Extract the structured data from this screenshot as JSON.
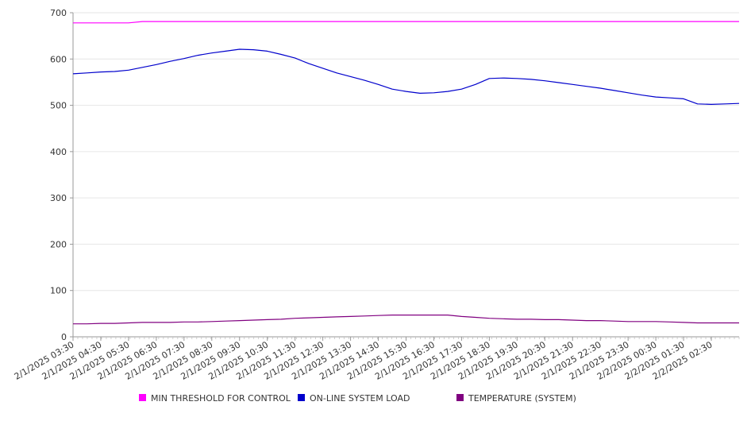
{
  "chart_data": {
    "type": "line",
    "title": "",
    "xlabel": "",
    "ylabel": "",
    "ylim": [
      0,
      700
    ],
    "y_ticks": [
      0,
      100,
      200,
      300,
      400,
      500,
      600,
      700
    ],
    "grid": "horizontal",
    "legend_position": "bottom",
    "x_tick_labels": [
      "2/1/2025 03:30",
      "2/1/2025 04:30",
      "2/1/2025 05:30",
      "2/1/2025 06:30",
      "2/1/2025 07:30",
      "2/1/2025 08:30",
      "2/1/2025 09:30",
      "2/1/2025 10:30",
      "2/1/2025 11:30",
      "2/1/2025 12:30",
      "2/1/2025 13:30",
      "2/1/2025 14:30",
      "2/1/2025 15:30",
      "2/1/2025 16:30",
      "2/1/2025 17:30",
      "2/1/2025 18:30",
      "2/1/2025 19:30",
      "2/1/2025 20:30",
      "2/1/2025 21:30",
      "2/1/2025 22:30",
      "2/1/2025 23:30",
      "2/2/2025 00:30",
      "2/2/2025 01:30",
      "2/2/2025 02:30"
    ],
    "x": [
      "03:30",
      "04:00",
      "04:30",
      "05:00",
      "05:30",
      "06:00",
      "06:30",
      "07:00",
      "07:30",
      "08:00",
      "08:30",
      "09:00",
      "09:30",
      "10:00",
      "10:30",
      "11:00",
      "11:30",
      "12:00",
      "12:30",
      "13:00",
      "13:30",
      "14:00",
      "14:30",
      "15:00",
      "15:30",
      "16:00",
      "16:30",
      "17:00",
      "17:30",
      "18:00",
      "18:30",
      "19:00",
      "19:30",
      "20:00",
      "20:30",
      "21:00",
      "21:30",
      "22:00",
      "22:30",
      "23:00",
      "23:30",
      "00:00",
      "00:30",
      "01:00",
      "01:30",
      "02:00",
      "02:30",
      "03:00",
      "03:30"
    ],
    "series": [
      {
        "name": "MIN THRESHOLD FOR CONTROL",
        "color": "#ff00ff",
        "values": [
          678,
          678,
          678,
          678,
          678,
          681,
          681,
          681,
          681,
          681,
          681,
          681,
          681,
          681,
          681,
          681,
          681,
          681,
          681,
          681,
          681,
          681,
          681,
          681,
          681,
          681,
          681,
          681,
          681,
          681,
          681,
          681,
          681,
          681,
          681,
          681,
          681,
          681,
          681,
          681,
          681,
          681,
          681,
          681,
          681,
          681,
          681,
          681,
          681
        ]
      },
      {
        "name": "ON-LINE SYSTEM LOAD",
        "color": "#0000cc",
        "values": [
          568,
          570,
          572,
          573,
          576,
          582,
          588,
          595,
          601,
          608,
          613,
          617,
          621,
          620,
          617,
          610,
          602,
          590,
          580,
          570,
          562,
          554,
          545,
          535,
          530,
          526,
          527,
          530,
          535,
          545,
          558,
          559,
          558,
          556,
          553,
          549,
          545,
          541,
          537,
          532,
          527,
          522,
          518,
          516,
          514,
          503,
          502,
          503,
          504
        ]
      },
      {
        "name": "TEMPERATURE (SYSTEM)",
        "color": "#800080",
        "values": [
          28,
          28,
          29,
          29,
          30,
          31,
          31,
          31,
          32,
          32,
          33,
          34,
          35,
          36,
          37,
          38,
          40,
          41,
          42,
          43,
          44,
          45,
          46,
          47,
          47,
          47,
          47,
          47,
          44,
          42,
          40,
          39,
          38,
          38,
          37,
          37,
          36,
          35,
          35,
          34,
          33,
          33,
          33,
          32,
          31,
          30,
          30,
          30,
          30
        ]
      }
    ]
  }
}
